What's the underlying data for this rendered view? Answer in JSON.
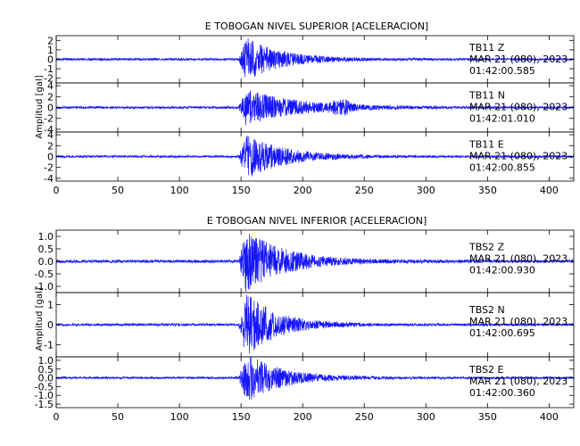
{
  "chart_data": [
    {
      "type": "line",
      "title": "E TOBOGAN NIVEL SUPERIOR [ACELERACION]",
      "ylabel": "Amplitud [gal]",
      "xlim": [
        0,
        420
      ],
      "xticks": [
        0,
        50,
        100,
        150,
        200,
        250,
        300,
        350,
        400
      ],
      "panels": [
        {
          "station": "TB11",
          "component": "Z",
          "date": "MAR 21 (080), 2023",
          "time": "01:42:00.585",
          "ylim": [
            -2.5,
            2.5
          ],
          "yticks": [
            -2,
            -1,
            0,
            1,
            2
          ],
          "onset": 148,
          "peak": 2.1,
          "noise": 0.12,
          "decay": 28
        },
        {
          "station": "TB11",
          "component": "N",
          "date": "MAR 21 (080), 2023",
          "time": "01:42:01.010",
          "ylim": [
            -4.5,
            4.5
          ],
          "yticks": [
            -4,
            -2,
            0,
            2,
            4
          ],
          "onset": 148,
          "peak": 3.2,
          "noise": 0.2,
          "decay": 40,
          "coda": {
            "center": 232,
            "amp": 1.0,
            "width": 8
          }
        },
        {
          "station": "TB11",
          "component": "E",
          "date": "MAR 21 (080), 2023",
          "time": "01:42:00.855",
          "ylim": [
            -4.5,
            4.5
          ],
          "yticks": [
            -4,
            -2,
            0,
            2,
            4
          ],
          "onset": 148,
          "peak": 3.8,
          "noise": 0.2,
          "decay": 30
        }
      ]
    },
    {
      "type": "line",
      "title": "E TOBOGAN NIVEL INFERIOR [ACELERACION]",
      "ylabel": "Amplitud [gal]",
      "xlim": [
        0,
        420
      ],
      "xticks": [
        0,
        50,
        100,
        150,
        200,
        250,
        300,
        350,
        400
      ],
      "panels": [
        {
          "station": "TBS2",
          "component": "Z",
          "date": "MAR 21 (080), 2023",
          "time": "01:42:00.930",
          "ylim": [
            -1.25,
            1.25
          ],
          "yticks": [
            -1.0,
            -0.5,
            0.0,
            0.5,
            1.0
          ],
          "ytick_labels": [
            "-1.0",
            "-0.5",
            "0.0",
            "0.5",
            "1.0"
          ],
          "onset": 148,
          "peak": 1.2,
          "noise": 0.06,
          "decay": 30
        },
        {
          "station": "TBS2",
          "component": "N",
          "date": "MAR 21 (080), 2023",
          "time": "01:42:00.695",
          "ylim": [
            -1.6,
            1.6
          ],
          "yticks": [
            -1,
            0,
            1
          ],
          "ytick_labels": [
            "-1",
            "0",
            "1"
          ],
          "onset": 148,
          "peak": 1.5,
          "noise": 0.06,
          "decay": 25
        },
        {
          "station": "TBS2",
          "component": "E",
          "date": "MAR 21 (080), 2023",
          "time": "01:42:00.360",
          "ylim": [
            -1.7,
            1.2
          ],
          "yticks": [
            -1.5,
            -1.0,
            -0.5,
            0.0,
            0.5,
            1.0
          ],
          "ytick_labels": [
            "-1.5",
            "-1.0",
            "-0.5",
            "0.0",
            "0.5",
            "1.0"
          ],
          "onset": 148,
          "peak": 1.3,
          "noise": 0.06,
          "decay": 28
        }
      ]
    }
  ]
}
